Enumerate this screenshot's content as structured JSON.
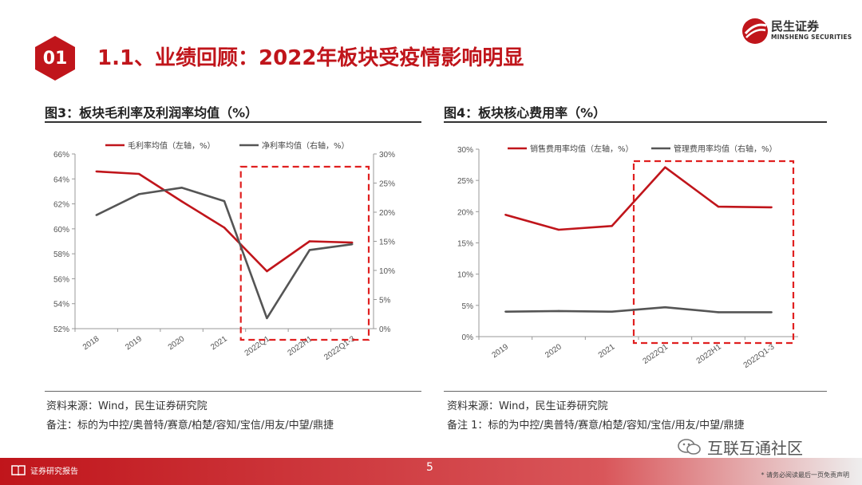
{
  "header": {
    "badge": "01",
    "title": "1.1、业绩回顾：2022年板块受疫情影响明显",
    "brand_cn": "民生证券",
    "brand_en": "MINSHENG SECURITIES"
  },
  "colors": {
    "accent": "#c0151b",
    "gray_series": "#555555"
  },
  "left_panel": {
    "title": "图3：板块毛利率及利润率均值（%）",
    "source": "资料来源：Wind，民生证券研究院",
    "note": "备注：标的为中控/奥普特/赛意/柏楚/容知/宝信/用友/中望/鼎捷"
  },
  "right_panel": {
    "title": "图4：板块核心费用率（%）",
    "source": "资料来源：Wind，民生证券研究院",
    "note": "备注 1：标的为中控/奥普特/赛意/柏楚/容知/宝信/用友/中望/鼎捷"
  },
  "footer": {
    "label": "证券研究报告",
    "page": "5",
    "disclaimer": "* 请务必阅读最后一页免责声明",
    "watermark": "互联互通社区"
  },
  "chart_data": [
    {
      "type": "line",
      "categories": [
        "2018",
        "2019",
        "2020",
        "2021",
        "2022Q1",
        "2022H1",
        "2022Q1-3"
      ],
      "left_axis": {
        "ticks": [
          "52%",
          "54%",
          "56%",
          "58%",
          "60%",
          "62%",
          "64%",
          "66%"
        ],
        "ylim": [
          52,
          66
        ]
      },
      "right_axis": {
        "ticks": [
          "0%",
          "5%",
          "10%",
          "15%",
          "20%",
          "25%",
          "30%"
        ],
        "ylim": [
          0,
          30
        ]
      },
      "series": [
        {
          "name": "毛利率均值（左轴，%）",
          "axis": "left",
          "color": "#c0151b",
          "values": [
            64.6,
            64.4,
            62.2,
            60.1,
            56.6,
            59.0,
            58.9
          ]
        },
        {
          "name": "净利率均值（右轴，%）",
          "axis": "right",
          "color": "#555555",
          "values": [
            19.5,
            23.1,
            24.2,
            21.9,
            1.8,
            13.5,
            14.5
          ]
        }
      ],
      "highlight_from": "2022Q1"
    },
    {
      "type": "line",
      "categories": [
        "2019",
        "2020",
        "2021",
        "2022Q1",
        "2022H1",
        "2022Q1-3"
      ],
      "left_axis": {
        "ticks": [
          "0%",
          "5%",
          "10%",
          "15%",
          "20%",
          "25%",
          "30%"
        ],
        "ylim": [
          0,
          30
        ]
      },
      "series": [
        {
          "name": "销售费用率均值（左轴，%）",
          "axis": "left",
          "color": "#c0151b",
          "values": [
            19.5,
            17.1,
            17.7,
            27.1,
            20.8,
            20.7
          ]
        },
        {
          "name": "管理费用率均值（右轴，%）",
          "axis": "left",
          "color": "#555555",
          "values": [
            4.0,
            4.1,
            4.0,
            4.7,
            3.9,
            3.9
          ]
        }
      ],
      "highlight_from": "2022Q1"
    }
  ]
}
